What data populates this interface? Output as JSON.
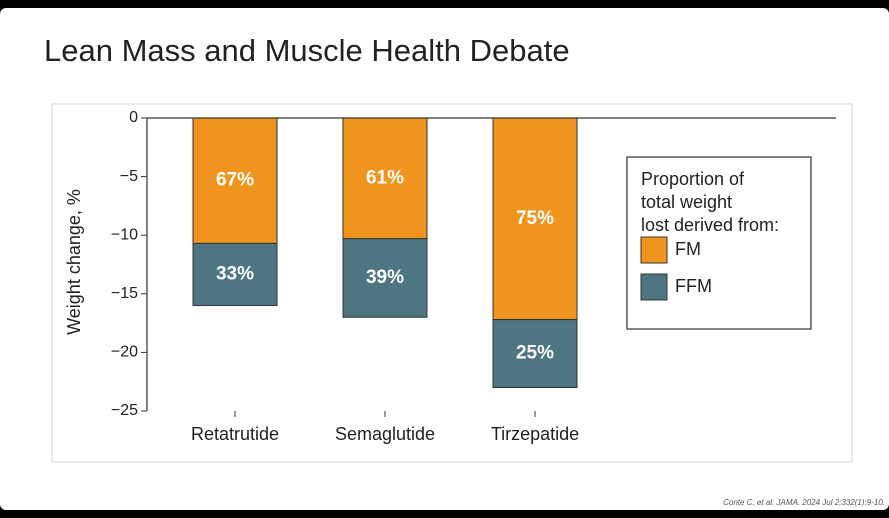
{
  "title": "Lean Mass and Muscle Health Debate",
  "citation": "Conte C, et al. JAMA. 2024 Jul 2;332(1):9-10.",
  "chart_data": {
    "type": "stacked-bar",
    "y_label": "Weight change, %",
    "categories": [
      "Retatrutide",
      "Semaglutide",
      "Tirzepatide"
    ],
    "series": [
      {
        "name": "FM",
        "color": "#f0941e",
        "values": [
          -10.7,
          -10.3,
          -17.2
        ],
        "labels": [
          "67%",
          "61%",
          "75%"
        ]
      },
      {
        "name": "FFM",
        "color": "#4e7682",
        "values": [
          -5.3,
          -6.7,
          -5.8
        ],
        "labels": [
          "33%",
          "39%",
          "25%"
        ]
      }
    ],
    "ylim": [
      -25,
      0
    ],
    "yticks": [
      0,
      -5,
      -10,
      -15,
      -20,
      -25
    ],
    "y_tick_labels": [
      "0",
      "−5",
      "−10",
      "−15",
      "−20",
      "−25"
    ],
    "legend_title": [
      "Proportion of",
      "total weight",
      "lost derived from:"
    ],
    "legend_position": "right"
  }
}
